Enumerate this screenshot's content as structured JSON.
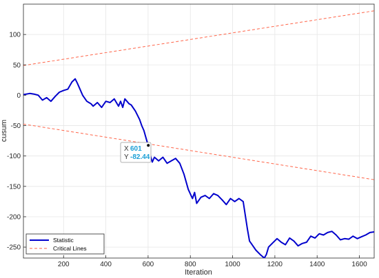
{
  "chart_data": {
    "type": "line",
    "title": "",
    "xlabel": "Iteration",
    "ylabel": "cusum",
    "xlim": [
      10,
      1670
    ],
    "ylim": [
      -268,
      150
    ],
    "x_ticks": [
      200,
      400,
      600,
      800,
      1000,
      1200,
      1400,
      1600
    ],
    "x_tick_labels": [
      "200",
      "400",
      "600",
      "800",
      "1000",
      "1200",
      "1400",
      "1600"
    ],
    "y_ticks": [
      -250,
      -200,
      -150,
      -100,
      -50,
      0,
      50,
      100
    ],
    "y_tick_labels": [
      "-250",
      "-200",
      "-150",
      "-100",
      "-50",
      "0",
      "50",
      "100"
    ],
    "grid": true,
    "legend_position": "bottom-left",
    "colors": {
      "statistic": "#0000cc",
      "critical": "#ff6347",
      "tooltip_value": "#1a9fd6"
    },
    "series": [
      {
        "name": "Statistic",
        "style": "solid",
        "x": [
          10,
          40,
          60,
          80,
          100,
          120,
          140,
          160,
          180,
          200,
          220,
          240,
          255,
          265,
          275,
          290,
          310,
          330,
          340,
          360,
          380,
          400,
          420,
          440,
          460,
          470,
          480,
          490,
          500,
          510,
          520,
          540,
          560,
          570,
          580,
          590,
          600,
          610,
          620,
          630,
          650,
          670,
          690,
          710,
          730,
          750,
          770,
          790,
          810,
          820,
          830,
          850,
          870,
          890,
          910,
          930,
          950,
          970,
          990,
          1010,
          1030,
          1050,
          1070,
          1080,
          1090,
          1110,
          1130,
          1150,
          1160,
          1170,
          1190,
          1210,
          1230,
          1250,
          1270,
          1290,
          1310,
          1330,
          1350,
          1370,
          1390,
          1410,
          1430,
          1450,
          1470,
          1490,
          1510,
          1530,
          1550,
          1570,
          1590,
          1610,
          1630,
          1650,
          1670
        ],
        "values": [
          1,
          3,
          2,
          0,
          -8,
          -4,
          -10,
          -2,
          5,
          8,
          10,
          22,
          27,
          20,
          12,
          0,
          -10,
          -14,
          -18,
          -12,
          -20,
          -10,
          -12,
          -6,
          -18,
          -10,
          -20,
          -6,
          -10,
          -14,
          -16,
          -26,
          -40,
          -50,
          -58,
          -70,
          -82.44,
          -98,
          -110,
          -102,
          -108,
          -102,
          -112,
          -108,
          -104,
          -112,
          -130,
          -155,
          -170,
          -160,
          -178,
          -168,
          -165,
          -170,
          -162,
          -165,
          -172,
          -180,
          -170,
          -175,
          -170,
          -175,
          -220,
          -240,
          -245,
          -255,
          -262,
          -268,
          -262,
          -250,
          -243,
          -236,
          -242,
          -246,
          -235,
          -240,
          -248,
          -244,
          -242,
          -232,
          -235,
          -228,
          -230,
          -226,
          -224,
          -230,
          -238,
          -236,
          -237,
          -232,
          -236,
          -233,
          -230,
          -226,
          -225
        ]
      },
      {
        "name": "Critical Lines",
        "style": "dashed",
        "upper": {
          "x": [
            10,
            1670
          ],
          "values": [
            49,
            139
          ]
        },
        "lower": {
          "x": [
            10,
            1670
          ],
          "values": [
            -47.5,
            -139
          ]
        }
      }
    ],
    "annotation": {
      "x": 601,
      "y": -82.44,
      "x_label": "X",
      "y_label": "Y",
      "x_text": "601",
      "y_text": "-82.44"
    }
  }
}
